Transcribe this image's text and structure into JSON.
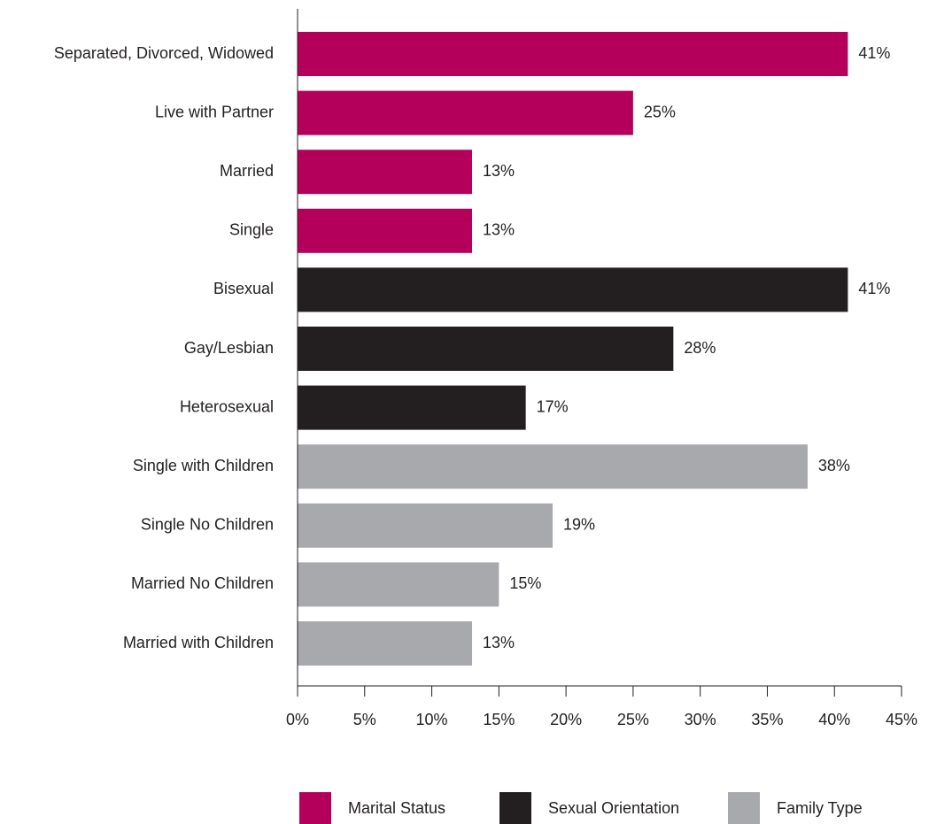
{
  "chart_data": {
    "type": "bar",
    "orientation": "horizontal",
    "categories": [
      "Separated, Divorced, Widowed",
      "Live with Partner",
      "Married",
      "Single",
      "Bisexual",
      "Gay/Lesbian",
      "Heterosexual",
      "Single with Children",
      "Single No Children",
      "Married No Children",
      "Married with Children"
    ],
    "values": [
      41,
      25,
      13,
      13,
      41,
      28,
      17,
      38,
      19,
      15,
      13
    ],
    "value_labels": [
      "41%",
      "25%",
      "13%",
      "13%",
      "41%",
      "28%",
      "17%",
      "38%",
      "19%",
      "15%",
      "13%"
    ],
    "groups": [
      "Marital Status",
      "Marital Status",
      "Marital Status",
      "Marital Status",
      "Sexual Orientation",
      "Sexual Orientation",
      "Sexual Orientation",
      "Family Type",
      "Family Type",
      "Family Type",
      "Family Type"
    ],
    "series": [
      {
        "name": "Marital Status",
        "color": "#b5005b"
      },
      {
        "name": "Sexual Orientation",
        "color": "#231f20"
      },
      {
        "name": "Family Type",
        "color": "#a7a9ac"
      }
    ],
    "x_ticks": [
      "0%",
      "5%",
      "10%",
      "15%",
      "20%",
      "25%",
      "30%",
      "35%",
      "40%",
      "45%"
    ],
    "xlim": [
      0,
      45
    ],
    "title": "",
    "xlabel": "",
    "ylabel": "",
    "grid": false,
    "legend_position": "bottom"
  }
}
